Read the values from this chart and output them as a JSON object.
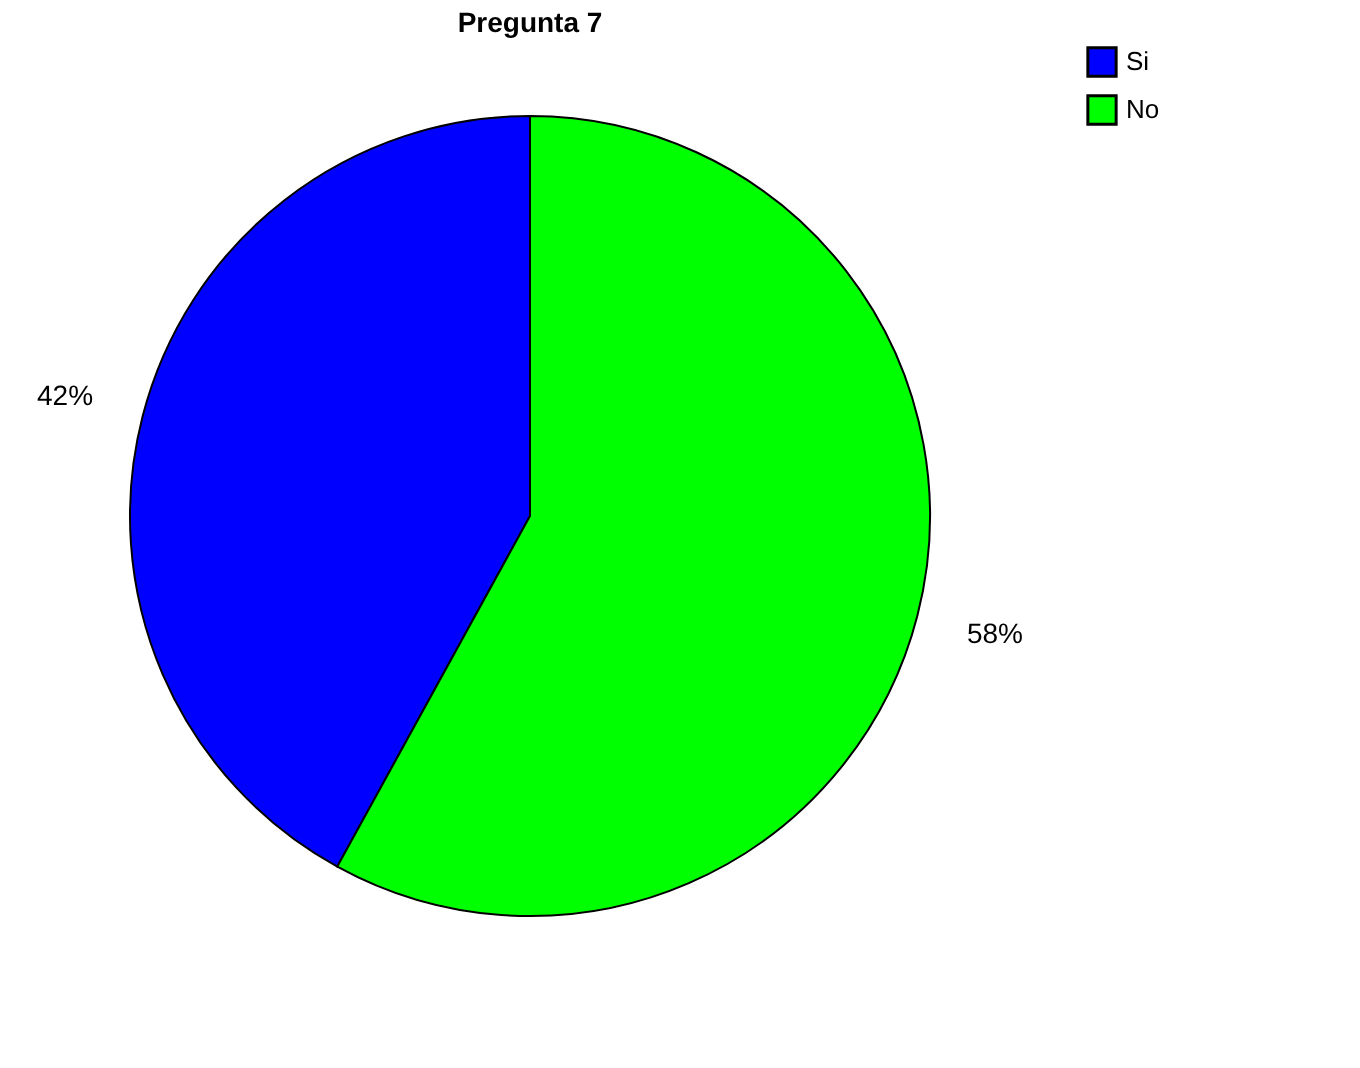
{
  "chart_data": {
    "type": "pie",
    "title": "Pregunta 7",
    "categories": [
      "Si",
      "No"
    ],
    "values": [
      42,
      58
    ],
    "colors": [
      "#0000ff",
      "#00ff00"
    ],
    "value_labels": [
      "42%",
      "58%"
    ],
    "legend": "right"
  }
}
